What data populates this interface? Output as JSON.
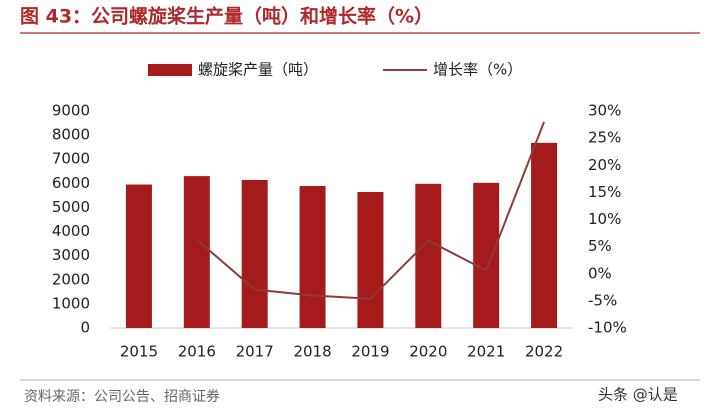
{
  "chart_data": {
    "type": "bar",
    "title": "图 43：公司螺旋桨生产量（吨）和增长率（%）",
    "source": "资料来源：公司公告、招商证券",
    "watermark": "头条 @认是",
    "categories": [
      "2015",
      "2016",
      "2017",
      "2018",
      "2019",
      "2020",
      "2021",
      "2022"
    ],
    "series": [
      {
        "name": "螺旋桨产量（吨）",
        "type": "bar",
        "color": "#a51b1b",
        "values": [
          5950,
          6300,
          6140,
          5890,
          5640,
          5980,
          6020,
          7680
        ]
      },
      {
        "name": "增长率（%）",
        "type": "line",
        "axis": "y2",
        "color": "#8e3b3b",
        "values": [
          null,
          6.3,
          -2.9,
          -4.0,
          -4.6,
          6.1,
          0.6,
          28.0
        ]
      }
    ],
    "ylim": [
      0,
      9000
    ],
    "yticks": [
      0,
      1000,
      2000,
      3000,
      4000,
      5000,
      6000,
      7000,
      8000,
      9000
    ],
    "y2lim": [
      -10,
      30
    ],
    "y2ticks": [
      {
        "value": 30,
        "label": "30%"
      },
      {
        "value": 25,
        "label": "25%"
      },
      {
        "value": 20,
        "label": "20%"
      },
      {
        "value": 15,
        "label": "15%"
      },
      {
        "value": 10,
        "label": "10%"
      },
      {
        "value": 5,
        "label": "5%"
      },
      {
        "value": 0,
        "label": "0%"
      },
      {
        "value": -5,
        "label": "-5%"
      },
      {
        "value": -10,
        "label": "-10%"
      }
    ],
    "legend": "top"
  }
}
